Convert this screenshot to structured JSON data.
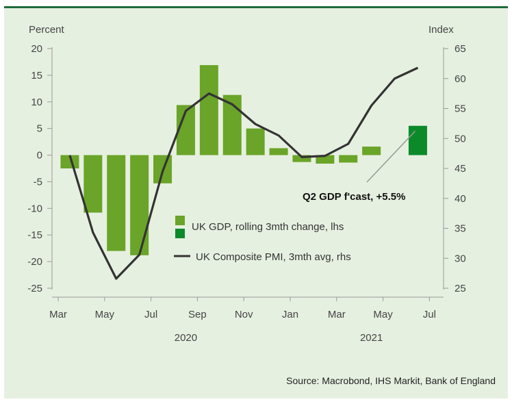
{
  "chart_data": {
    "type": "bar+line",
    "left_axis": {
      "title": "Percent",
      "ticks": [
        20,
        15,
        10,
        5,
        0,
        -5,
        -10,
        -15,
        -20,
        -25
      ],
      "ylim": [
        -25,
        20
      ]
    },
    "right_axis": {
      "title": "Index",
      "ticks": [
        65,
        60,
        55,
        50,
        45,
        40,
        35,
        30,
        25
      ],
      "ylim": [
        25,
        65
      ]
    },
    "x_tick_labels": [
      "Mar",
      "May",
      "Jul",
      "Sep",
      "Nov",
      "Jan",
      "Mar",
      "May",
      "Jul"
    ],
    "year_labels": [
      "2020",
      "2021"
    ],
    "months": [
      "Mar 2020",
      "Apr 2020",
      "May 2020",
      "Jun 2020",
      "Jul 2020",
      "Aug 2020",
      "Sep 2020",
      "Oct 2020",
      "Nov 2020",
      "Dec 2020",
      "Jan 2021",
      "Feb 2021",
      "Mar 2021",
      "Apr 2021",
      "May 2021",
      "Jun 2021"
    ],
    "series": [
      {
        "name": "UK GDP, rolling 3mth change, lhs",
        "type": "bar",
        "axis": "left",
        "color": "#6aa428",
        "values": [
          -2.5,
          -10.8,
          -18.0,
          -18.8,
          -5.3,
          9.4,
          16.9,
          11.3,
          5.0,
          1.3,
          -1.3,
          -1.6,
          -1.4,
          1.6,
          null,
          null
        ]
      },
      {
        "name": "",
        "type": "bar",
        "axis": "left",
        "color": "#0c8a2a",
        "values": [
          null,
          null,
          null,
          null,
          null,
          null,
          null,
          null,
          null,
          null,
          null,
          null,
          null,
          null,
          null,
          5.5
        ]
      },
      {
        "name": "UK Composite PMI, 3mth avg, rhs",
        "type": "line",
        "axis": "right",
        "color": "#333333",
        "values": [
          47.2,
          34.3,
          26.6,
          30.6,
          44.5,
          54.6,
          57.5,
          55.7,
          52.4,
          50.5,
          46.9,
          47.1,
          49.1,
          55.5,
          60.0,
          61.8
        ]
      }
    ],
    "annotation": {
      "text": "Q2 GDP f'cast, +5.5%",
      "points_to": "Jun 2021"
    },
    "source": "Source: Macrobond, IHS Markit, Bank of England"
  }
}
